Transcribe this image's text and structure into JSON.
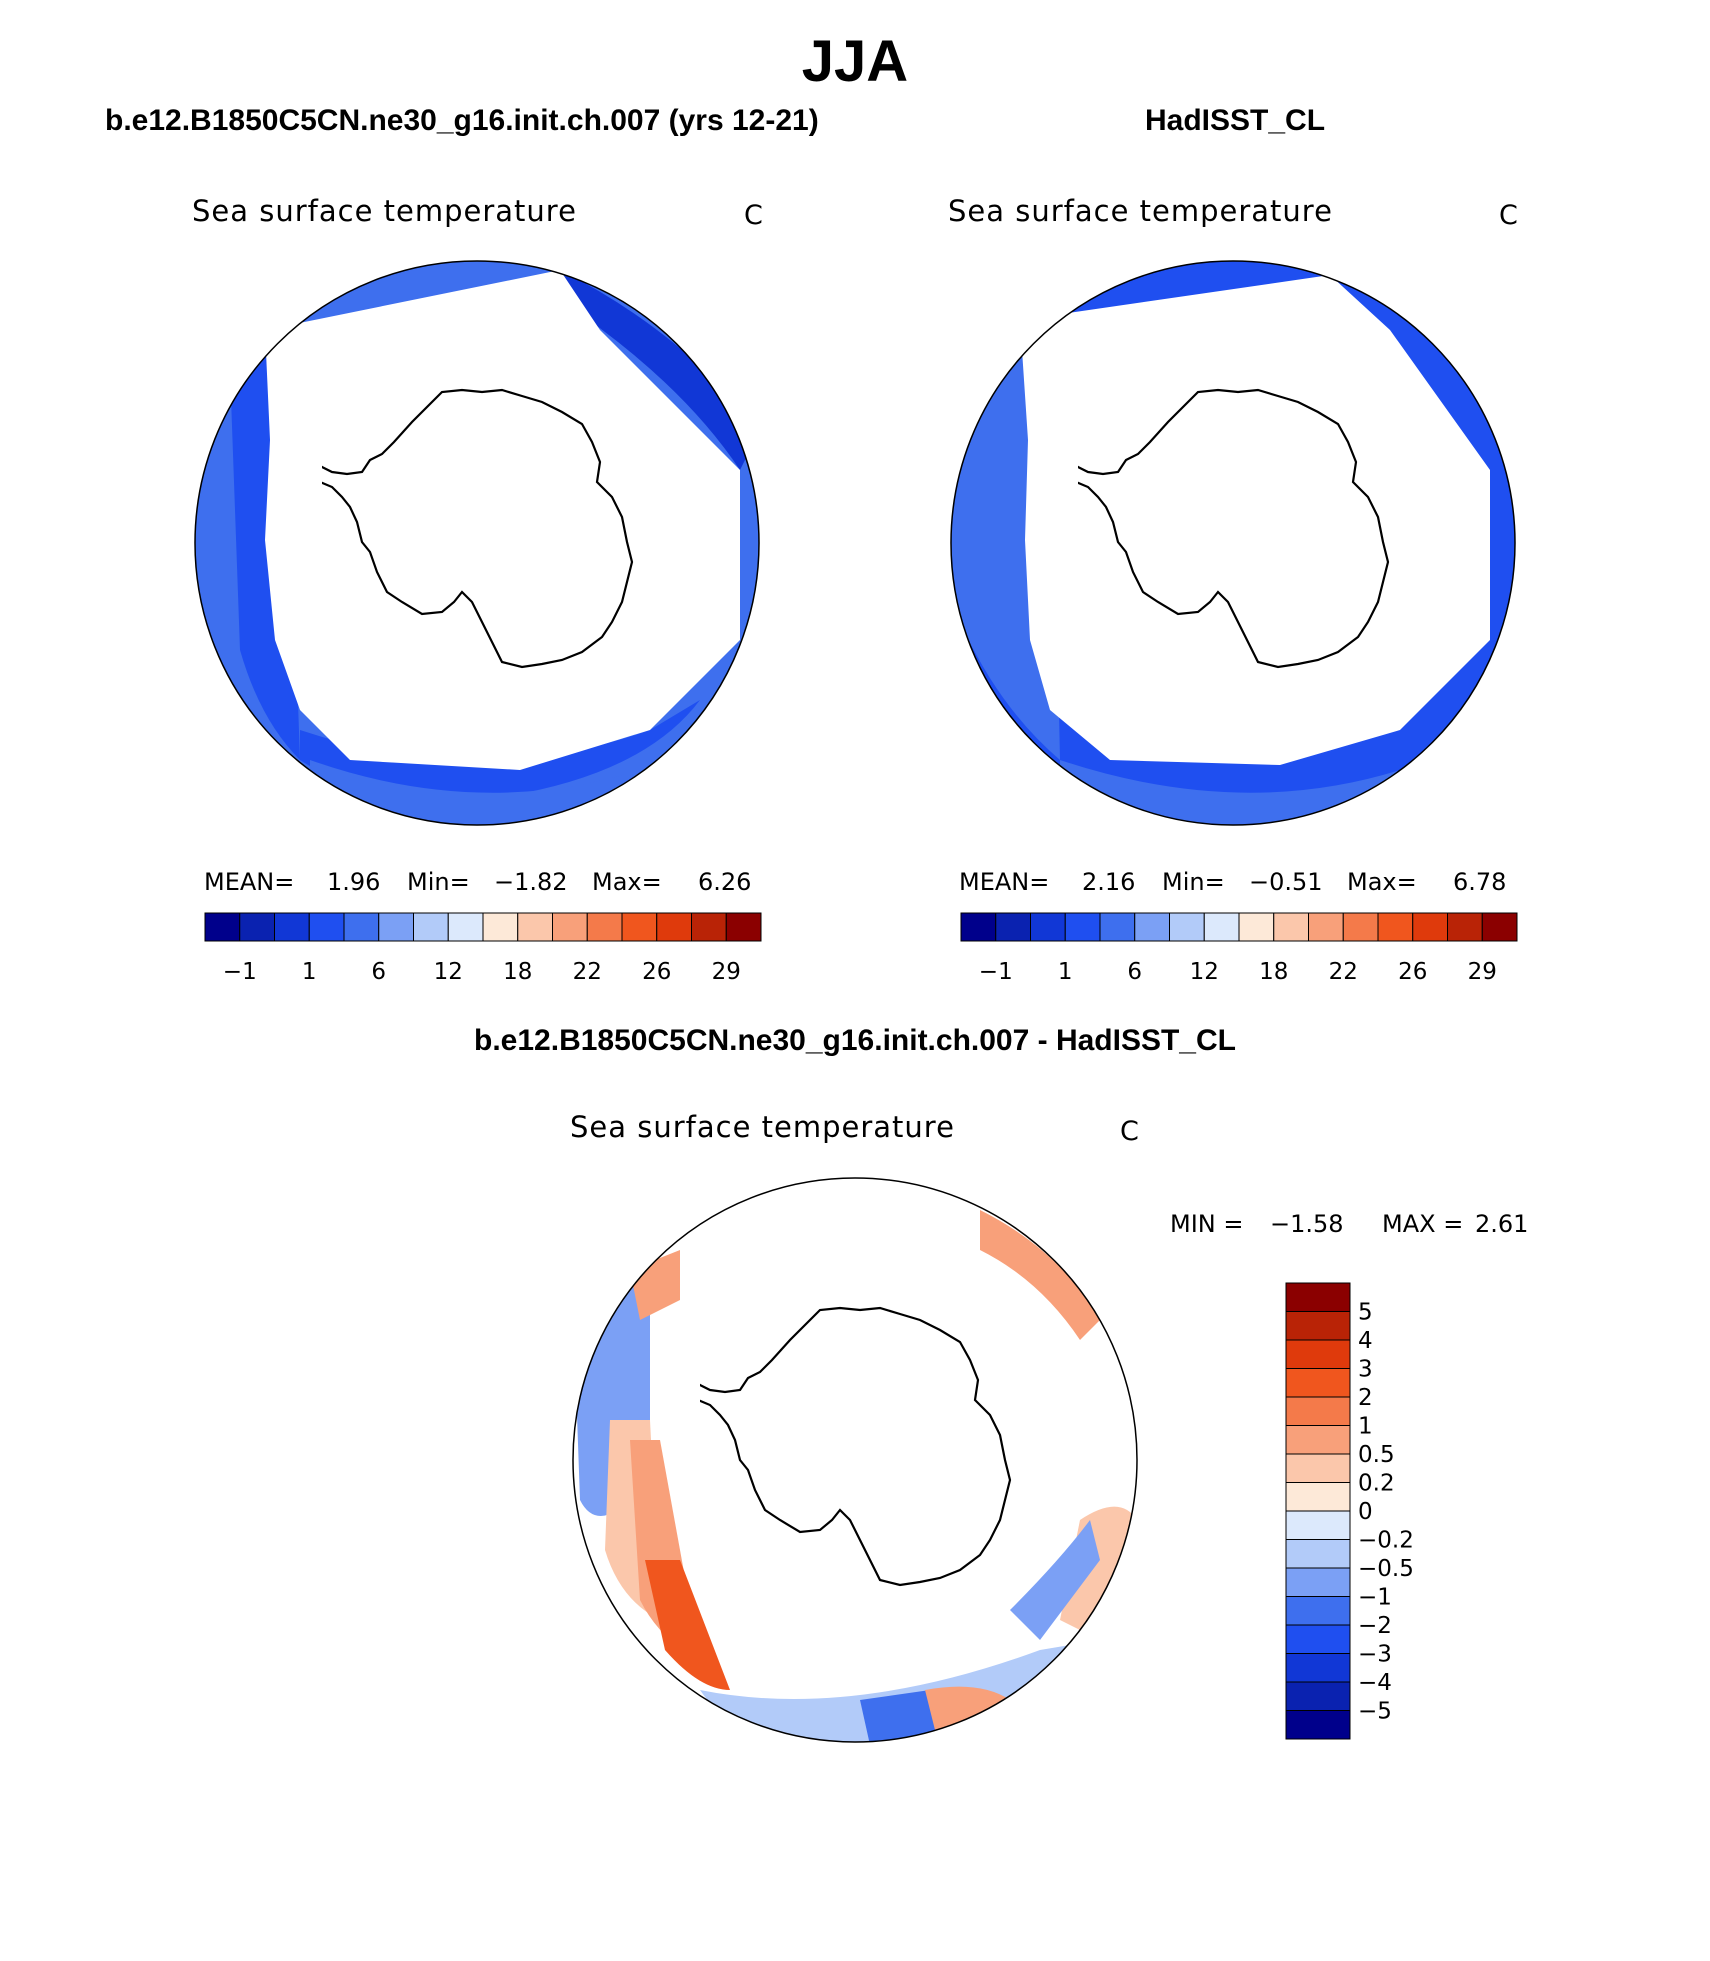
{
  "figure": {
    "title": "JJA",
    "left_panel_title": "b.e12.B1850C5CN.ne30_g16.init.ch.007 (yrs 12-21)",
    "right_panel_title": "HadISST_CL",
    "diff_panel_title": "b.e12.B1850C5CN.ne30_g16.init.ch.007 - HadISST_CL"
  },
  "left_map": {
    "variable": "Sea surface temperature",
    "units": "C",
    "mean_label": "MEAN=",
    "mean_value": "1.96",
    "min_label": "Min=",
    "min_value": "−1.82",
    "max_label": "Max=",
    "max_value": "6.26"
  },
  "right_map": {
    "variable": "Sea surface temperature",
    "units": "C",
    "mean_label": "MEAN=",
    "mean_value": "2.16",
    "min_label": "Min=",
    "min_value": "−0.51",
    "max_label": "Max=",
    "max_value": "6.78"
  },
  "diff_map": {
    "variable": "Sea surface temperature",
    "units": "C",
    "min_label": "MIN =",
    "min_value": "−1.58",
    "max_label": "MAX =",
    "max_value": "2.61"
  },
  "sst_colorbar": {
    "colors": [
      "#00008b",
      "#0a22b0",
      "#1137d6",
      "#1f4ff0",
      "#3e6fee",
      "#7ba0f5",
      "#b2cbf9",
      "#dce9fc",
      "#fde9d8",
      "#fbc7ab",
      "#f8a07a",
      "#f47a4a",
      "#f0561e",
      "#df3a0c",
      "#b92306",
      "#8b0000"
    ],
    "tick_labels": [
      "−1",
      "1",
      "6",
      "12",
      "18",
      "22",
      "26",
      "29"
    ]
  },
  "diff_colorbar": {
    "colors": [
      "#00008b",
      "#0a22b0",
      "#1137d6",
      "#1f4ff0",
      "#3e6fee",
      "#7ba0f5",
      "#b2cbf9",
      "#dce9fc",
      "#fde9d8",
      "#fbc7ab",
      "#f8a07a",
      "#f47a4a",
      "#f0561e",
      "#df3a0c",
      "#b92306",
      "#8b0000"
    ],
    "tick_labels": [
      "5",
      "4",
      "3",
      "2",
      "1",
      "0.5",
      "0.2",
      "0",
      "−0.2",
      "−0.5",
      "−1",
      "−2",
      "−3",
      "−4",
      "−5"
    ]
  },
  "map_colors": {
    "ocean_deep": "#1137d6",
    "ocean_mid": "#1f4ff0",
    "ocean_light": "#3e6fee",
    "ocean_pale": "#7ba0f5",
    "diff_warm": "#f8a07a",
    "diff_hot": "#f0561e",
    "diff_cool": "#b2cbf9",
    "diff_cold": "#7ba0f5",
    "land": "#ffffff",
    "coast": "#000000"
  }
}
